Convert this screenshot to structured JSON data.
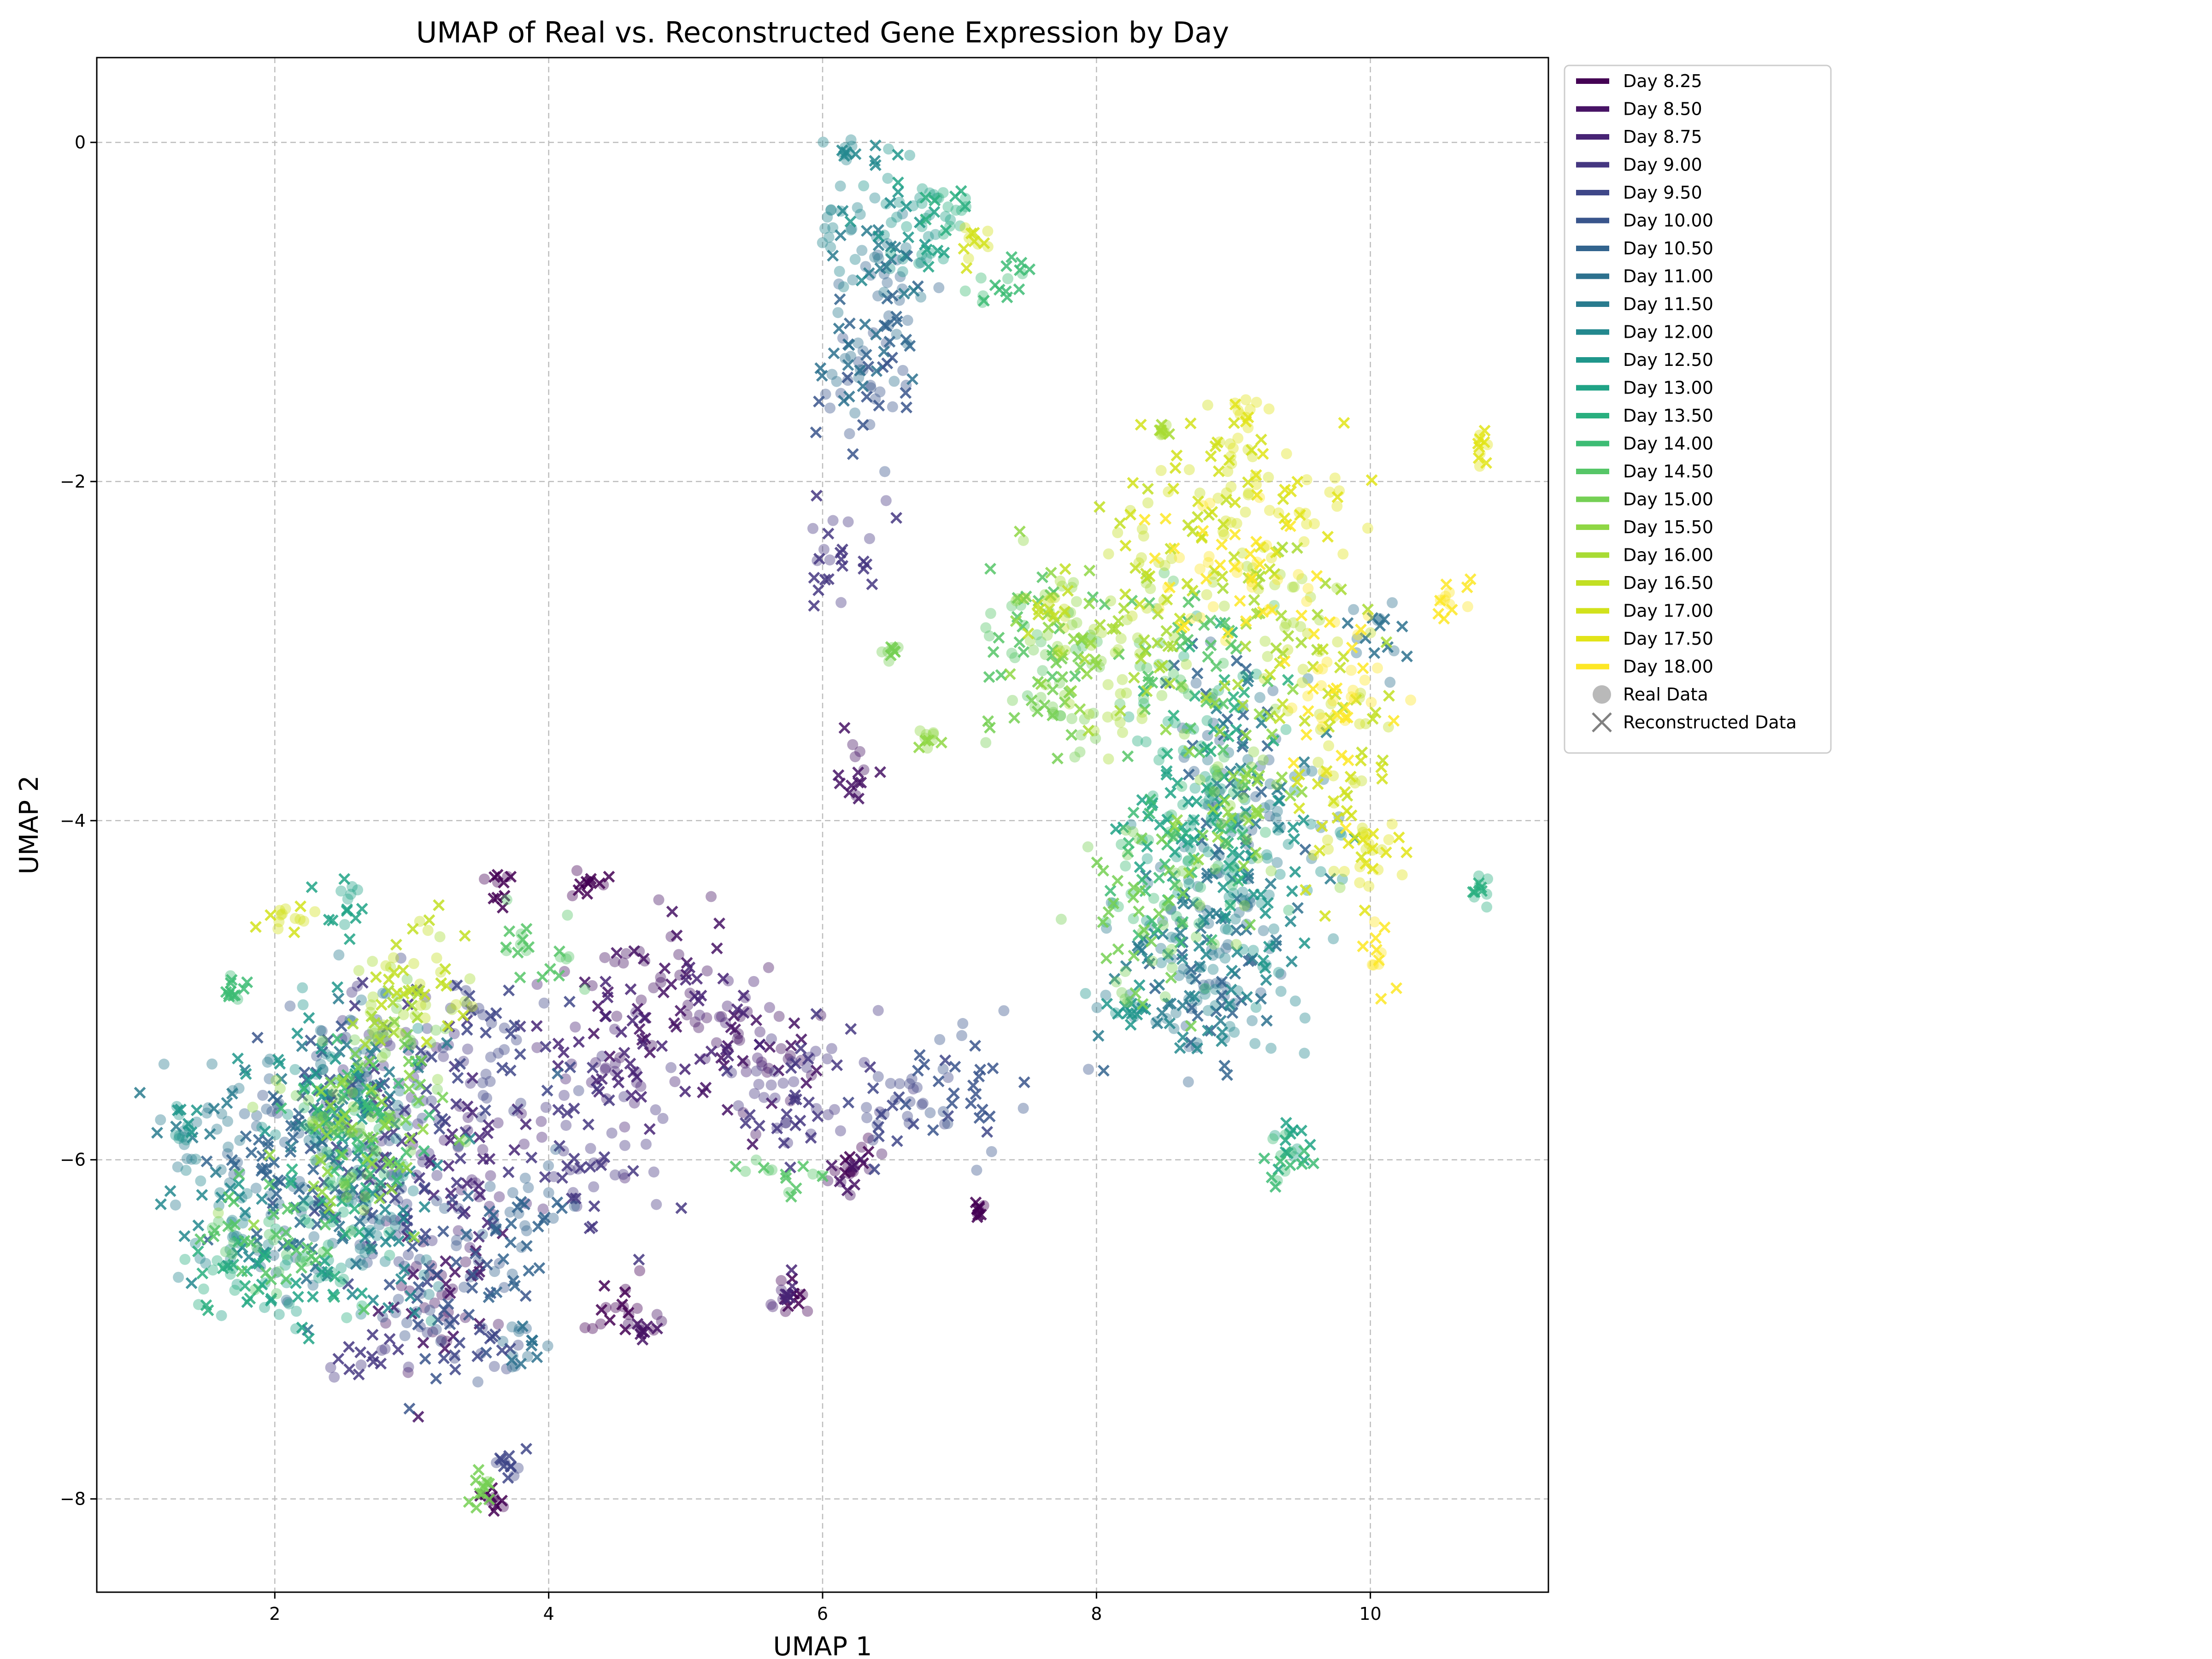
{
  "chart_data": {
    "type": "scatter",
    "title": "UMAP of Real vs. Reconstructed Gene Expression by Day",
    "xlabel": "UMAP 1",
    "ylabel": "UMAP 2",
    "xlim": [
      0.7,
      11.3
    ],
    "ylim": [
      -8.55,
      0.5
    ],
    "xticks": [
      2,
      4,
      6,
      8,
      10
    ],
    "xtick_labels": [
      "2",
      "4",
      "6",
      "8",
      "10"
    ],
    "yticks": [
      0,
      -2,
      -4,
      -6,
      -8
    ],
    "ytick_labels": [
      "0",
      "−2",
      "−4",
      "−6",
      "−8"
    ],
    "grid": true,
    "legend_position": "outside-right-top",
    "colormap": "viridis",
    "marker_styles": [
      {
        "name": "Real Data",
        "marker": "circle",
        "alpha": 0.4
      },
      {
        "name": "Reconstructed Data",
        "marker": "x",
        "alpha": 0.85
      }
    ],
    "series": [
      {
        "name": "Day 8.25",
        "color": "#440154",
        "clusters": [
          [
            4.5,
            -6.9,
            0.3,
            0.15
          ],
          [
            3.6,
            -8.0,
            0.1,
            0.08
          ],
          [
            6.2,
            -6.0,
            0.12,
            0.12
          ],
          [
            7.15,
            -6.3,
            0.05,
            0.05
          ],
          [
            5.8,
            -6.8,
            0.1,
            0.08
          ],
          [
            4.3,
            -4.35,
            0.12,
            0.08
          ],
          [
            3.6,
            -4.4,
            0.1,
            0.08
          ]
        ]
      },
      {
        "name": "Day 8.50",
        "color": "#471365",
        "clusters": [
          [
            3.2,
            -6.8,
            0.45,
            0.4
          ],
          [
            4.8,
            -5.0,
            0.5,
            0.5
          ],
          [
            6.2,
            -6.1,
            0.15,
            0.12
          ],
          [
            5.5,
            -5.4,
            0.45,
            0.4
          ],
          [
            4.7,
            -7.0,
            0.15,
            0.08
          ],
          [
            6.25,
            -3.7,
            0.15,
            0.2
          ]
        ]
      },
      {
        "name": "Day 8.75",
        "color": "#482475",
        "clusters": [
          [
            3.5,
            -6.0,
            0.5,
            0.5
          ],
          [
            4.5,
            -5.4,
            0.5,
            0.5
          ],
          [
            5.7,
            -6.8,
            0.1,
            0.08
          ],
          [
            5.3,
            -5.2,
            0.3,
            0.3
          ]
        ]
      },
      {
        "name": "Day 9.00",
        "color": "#453781",
        "clusters": [
          [
            3.0,
            -5.6,
            0.5,
            0.6
          ],
          [
            4.2,
            -6.0,
            0.5,
            0.5
          ],
          [
            2.7,
            -7.2,
            0.25,
            0.15
          ],
          [
            5.8,
            -5.6,
            0.5,
            0.5
          ],
          [
            6.2,
            -2.4,
            0.3,
            0.3
          ]
        ]
      },
      {
        "name": "Day 9.50",
        "color": "#3f4788",
        "clusters": [
          [
            2.8,
            -6.2,
            0.5,
            0.5
          ],
          [
            3.5,
            -7.1,
            0.3,
            0.2
          ],
          [
            3.5,
            -5.4,
            0.5,
            0.5
          ],
          [
            6.6,
            -5.7,
            0.4,
            0.3
          ],
          [
            3.7,
            -7.8,
            0.1,
            0.1
          ]
        ]
      },
      {
        "name": "Day 10.00",
        "color": "#39558c",
        "clusters": [
          [
            2.4,
            -5.6,
            0.5,
            0.5
          ],
          [
            3.2,
            -6.7,
            0.5,
            0.5
          ],
          [
            6.3,
            -1.5,
            0.3,
            0.4
          ],
          [
            7.1,
            -5.6,
            0.4,
            0.3
          ]
        ]
      },
      {
        "name": "Day 10.50",
        "color": "#32648e",
        "clusters": [
          [
            2.0,
            -6.0,
            0.5,
            0.5
          ],
          [
            3.8,
            -6.4,
            0.4,
            0.5
          ],
          [
            6.5,
            -0.9,
            0.3,
            0.4
          ],
          [
            8.8,
            -5.1,
            0.4,
            0.4
          ],
          [
            9.0,
            -3.6,
            0.4,
            0.5
          ]
        ]
      },
      {
        "name": "Day 11.00",
        "color": "#2d718e",
        "clusters": [
          [
            2.2,
            -6.4,
            0.5,
            0.5
          ],
          [
            3.8,
            -7.1,
            0.2,
            0.15
          ],
          [
            6.3,
            -1.3,
            0.3,
            0.3
          ],
          [
            9.0,
            -4.5,
            0.4,
            0.4
          ],
          [
            10.0,
            -2.9,
            0.2,
            0.2
          ]
        ]
      },
      {
        "name": "Day 11.50",
        "color": "#297b8e",
        "clusters": [
          [
            1.5,
            -5.8,
            0.3,
            0.4
          ],
          [
            2.6,
            -5.5,
            0.5,
            0.5
          ],
          [
            6.4,
            -0.7,
            0.3,
            0.3
          ],
          [
            8.5,
            -4.8,
            0.5,
            0.5
          ],
          [
            9.2,
            -3.9,
            0.5,
            0.5
          ]
        ]
      },
      {
        "name": "Day 12.00",
        "color": "#23888e",
        "clusters": [
          [
            1.6,
            -6.4,
            0.4,
            0.4
          ],
          [
            2.8,
            -6.4,
            0.5,
            0.5
          ],
          [
            6.2,
            -0.4,
            0.25,
            0.3
          ],
          [
            8.9,
            -4.9,
            0.5,
            0.5
          ],
          [
            6.2,
            -0.05,
            0.05,
            0.05
          ]
        ]
      },
      {
        "name": "Day 12.50",
        "color": "#1f968b",
        "clusters": [
          [
            1.3,
            -5.8,
            0.1,
            0.15
          ],
          [
            2.4,
            -5.6,
            0.5,
            0.5
          ],
          [
            6.6,
            -0.5,
            0.3,
            0.3
          ],
          [
            9.2,
            -4.3,
            0.5,
            0.5
          ],
          [
            8.2,
            -5.1,
            0.2,
            0.1
          ]
        ]
      },
      {
        "name": "Day 13.00",
        "color": "#20a386",
        "clusters": [
          [
            2.2,
            -6.8,
            0.4,
            0.3
          ],
          [
            6.8,
            -0.5,
            0.2,
            0.3
          ],
          [
            8.7,
            -4.0,
            0.5,
            0.5
          ],
          [
            9.4,
            -5.9,
            0.15,
            0.15
          ],
          [
            2.5,
            -4.5,
            0.2,
            0.15
          ]
        ]
      },
      {
        "name": "Day 13.50",
        "color": "#29af7f",
        "clusters": [
          [
            1.6,
            -6.7,
            0.3,
            0.2
          ],
          [
            2.4,
            -6.4,
            0.4,
            0.4
          ],
          [
            6.9,
            -0.4,
            0.2,
            0.2
          ],
          [
            8.8,
            -3.5,
            0.5,
            0.5
          ],
          [
            10.8,
            -4.4,
            0.08,
            0.1
          ]
        ]
      },
      {
        "name": "Day 14.00",
        "color": "#3dbc74",
        "clusters": [
          [
            1.7,
            -5.0,
            0.1,
            0.1
          ],
          [
            2.6,
            -5.8,
            0.5,
            0.5
          ],
          [
            7.3,
            -0.8,
            0.2,
            0.2
          ],
          [
            9.4,
            -6.0,
            0.15,
            0.15
          ],
          [
            8.6,
            -4.3,
            0.5,
            0.5
          ]
        ]
      },
      {
        "name": "Day 14.50",
        "color": "#56c667",
        "clusters": [
          [
            2.0,
            -6.5,
            0.5,
            0.4
          ],
          [
            7.5,
            -2.9,
            0.4,
            0.4
          ],
          [
            8.6,
            -3.1,
            0.5,
            0.5
          ],
          [
            5.7,
            -6.1,
            0.3,
            0.1
          ],
          [
            3.9,
            -4.8,
            0.3,
            0.2
          ]
        ]
      },
      {
        "name": "Day 15.00",
        "color": "#75d054",
        "clusters": [
          [
            2.8,
            -5.6,
            0.5,
            0.5
          ],
          [
            7.6,
            -3.4,
            0.4,
            0.4
          ],
          [
            8.4,
            -4.5,
            0.5,
            0.5
          ],
          [
            6.5,
            -3.0,
            0.05,
            0.05
          ],
          [
            3.5,
            -7.9,
            0.08,
            0.15
          ]
        ]
      },
      {
        "name": "Day 15.50",
        "color": "#8fd744",
        "clusters": [
          [
            2.5,
            -5.9,
            0.5,
            0.5
          ],
          [
            7.8,
            -2.9,
            0.4,
            0.4
          ],
          [
            9.0,
            -3.8,
            0.5,
            0.5
          ],
          [
            6.8,
            -3.5,
            0.1,
            0.08
          ]
        ]
      },
      {
        "name": "Day 16.00",
        "color": "#a8db34",
        "clusters": [
          [
            2.9,
            -5.1,
            0.4,
            0.3
          ],
          [
            8.2,
            -3.0,
            0.5,
            0.5
          ],
          [
            9.3,
            -2.8,
            0.5,
            0.4
          ],
          [
            8.5,
            -1.7,
            0.05,
            0.05
          ]
        ]
      },
      {
        "name": "Day 16.50",
        "color": "#c2df23",
        "clusters": [
          [
            3.1,
            -4.9,
            0.4,
            0.3
          ],
          [
            8.5,
            -2.5,
            0.5,
            0.4
          ],
          [
            9.7,
            -3.3,
            0.4,
            0.4
          ],
          [
            7.7,
            -2.7,
            0.2,
            0.2
          ]
        ]
      },
      {
        "name": "Day 17.00",
        "color": "#d2e21b",
        "clusters": [
          [
            2.1,
            -4.6,
            0.2,
            0.1
          ],
          [
            8.8,
            -2.0,
            0.5,
            0.4
          ],
          [
            9.8,
            -3.9,
            0.3,
            0.5
          ],
          [
            7.1,
            -0.6,
            0.1,
            0.1
          ]
        ]
      },
      {
        "name": "Day 17.50",
        "color": "#e2e418",
        "clusters": [
          [
            9.1,
            -1.6,
            0.15,
            0.15
          ],
          [
            10.0,
            -4.2,
            0.2,
            0.3
          ],
          [
            9.5,
            -2.2,
            0.4,
            0.3
          ],
          [
            10.8,
            -1.8,
            0.05,
            0.1
          ]
        ]
      },
      {
        "name": "Day 18.00",
        "color": "#fde725",
        "clusters": [
          [
            9.8,
            -3.2,
            0.4,
            0.5
          ],
          [
            8.9,
            -2.5,
            0.5,
            0.4
          ],
          [
            10.6,
            -2.7,
            0.15,
            0.1
          ],
          [
            10.05,
            -4.8,
            0.08,
            0.15
          ]
        ]
      }
    ]
  }
}
